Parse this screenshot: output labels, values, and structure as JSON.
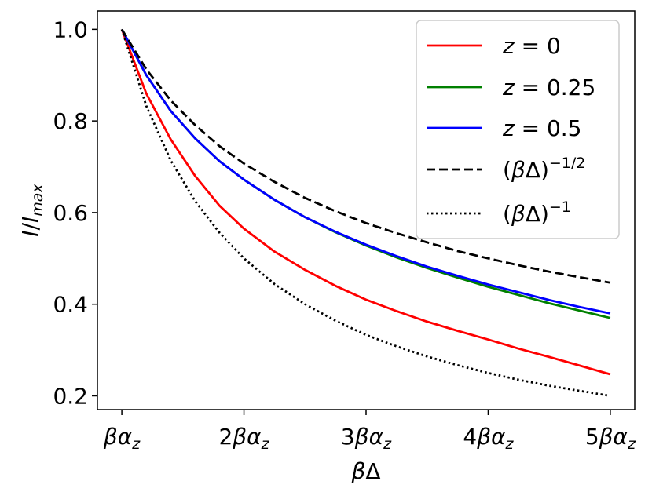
{
  "chart_data": {
    "type": "line",
    "title": "",
    "xlabel": "βΔ",
    "ylabel": "I/I_max",
    "xlim": [
      0.8,
      5.2
    ],
    "ylim": [
      0.17,
      1.04
    ],
    "x_ticks": [
      1,
      2,
      3,
      4,
      5
    ],
    "x_tick_labels": [
      "βαz",
      "2βαz",
      "3βαz",
      "4βαz",
      "5βαz"
    ],
    "y_ticks": [
      0.2,
      0.4,
      0.6,
      0.8,
      1.0
    ],
    "y_tick_labels": [
      "0.2",
      "0.4",
      "0.6",
      "0.8",
      "1.0"
    ],
    "grid": false,
    "legend_position": "top-right",
    "x": [
      1.0,
      1.2,
      1.4,
      1.6,
      1.8,
      2.0,
      2.25,
      2.5,
      2.75,
      3.0,
      3.25,
      3.5,
      3.75,
      4.0,
      4.25,
      4.5,
      4.75,
      5.0
    ],
    "series": [
      {
        "name": "z = 0",
        "legend_var": "z",
        "legend_value": "0",
        "color": "#ff0000",
        "style": "solid",
        "values": [
          1.0,
          0.86,
          0.76,
          0.68,
          0.615,
          0.565,
          0.515,
          0.475,
          0.44,
          0.41,
          0.385,
          0.362,
          0.342,
          0.323,
          0.303,
          0.285,
          0.266,
          0.247
        ]
      },
      {
        "name": "z = 0.25",
        "legend_var": "z",
        "legend_value": "0.25",
        "color": "#008000",
        "style": "solid",
        "values": [
          1.0,
          0.9,
          0.822,
          0.762,
          0.712,
          0.672,
          0.628,
          0.59,
          0.557,
          0.528,
          0.502,
          0.479,
          0.458,
          0.438,
          0.42,
          0.402,
          0.386,
          0.37
        ]
      },
      {
        "name": "z = 0.5",
        "legend_var": "z",
        "legend_value": "0.5",
        "color": "#0000ff",
        "style": "solid",
        "values": [
          1.0,
          0.9,
          0.822,
          0.762,
          0.712,
          0.672,
          0.628,
          0.59,
          0.558,
          0.53,
          0.505,
          0.482,
          0.462,
          0.443,
          0.426,
          0.409,
          0.394,
          0.38
        ]
      },
      {
        "name": "(βΔ)^(-1/2)",
        "legend_base": "(βΔ)",
        "legend_exp": "−1/2",
        "color": "#000000",
        "style": "dashed",
        "values": [
          1.0,
          0.913,
          0.845,
          0.791,
          0.745,
          0.707,
          0.667,
          0.632,
          0.603,
          0.577,
          0.555,
          0.535,
          0.516,
          0.5,
          0.485,
          0.471,
          0.459,
          0.447
        ]
      },
      {
        "name": "(βΔ)^(-1)",
        "legend_base": "(βΔ)",
        "legend_exp": "−1",
        "color": "#000000",
        "style": "dotted",
        "values": [
          1.0,
          0.833,
          0.714,
          0.625,
          0.556,
          0.5,
          0.444,
          0.4,
          0.364,
          0.333,
          0.308,
          0.286,
          0.267,
          0.25,
          0.235,
          0.222,
          0.211,
          0.2
        ]
      }
    ]
  }
}
